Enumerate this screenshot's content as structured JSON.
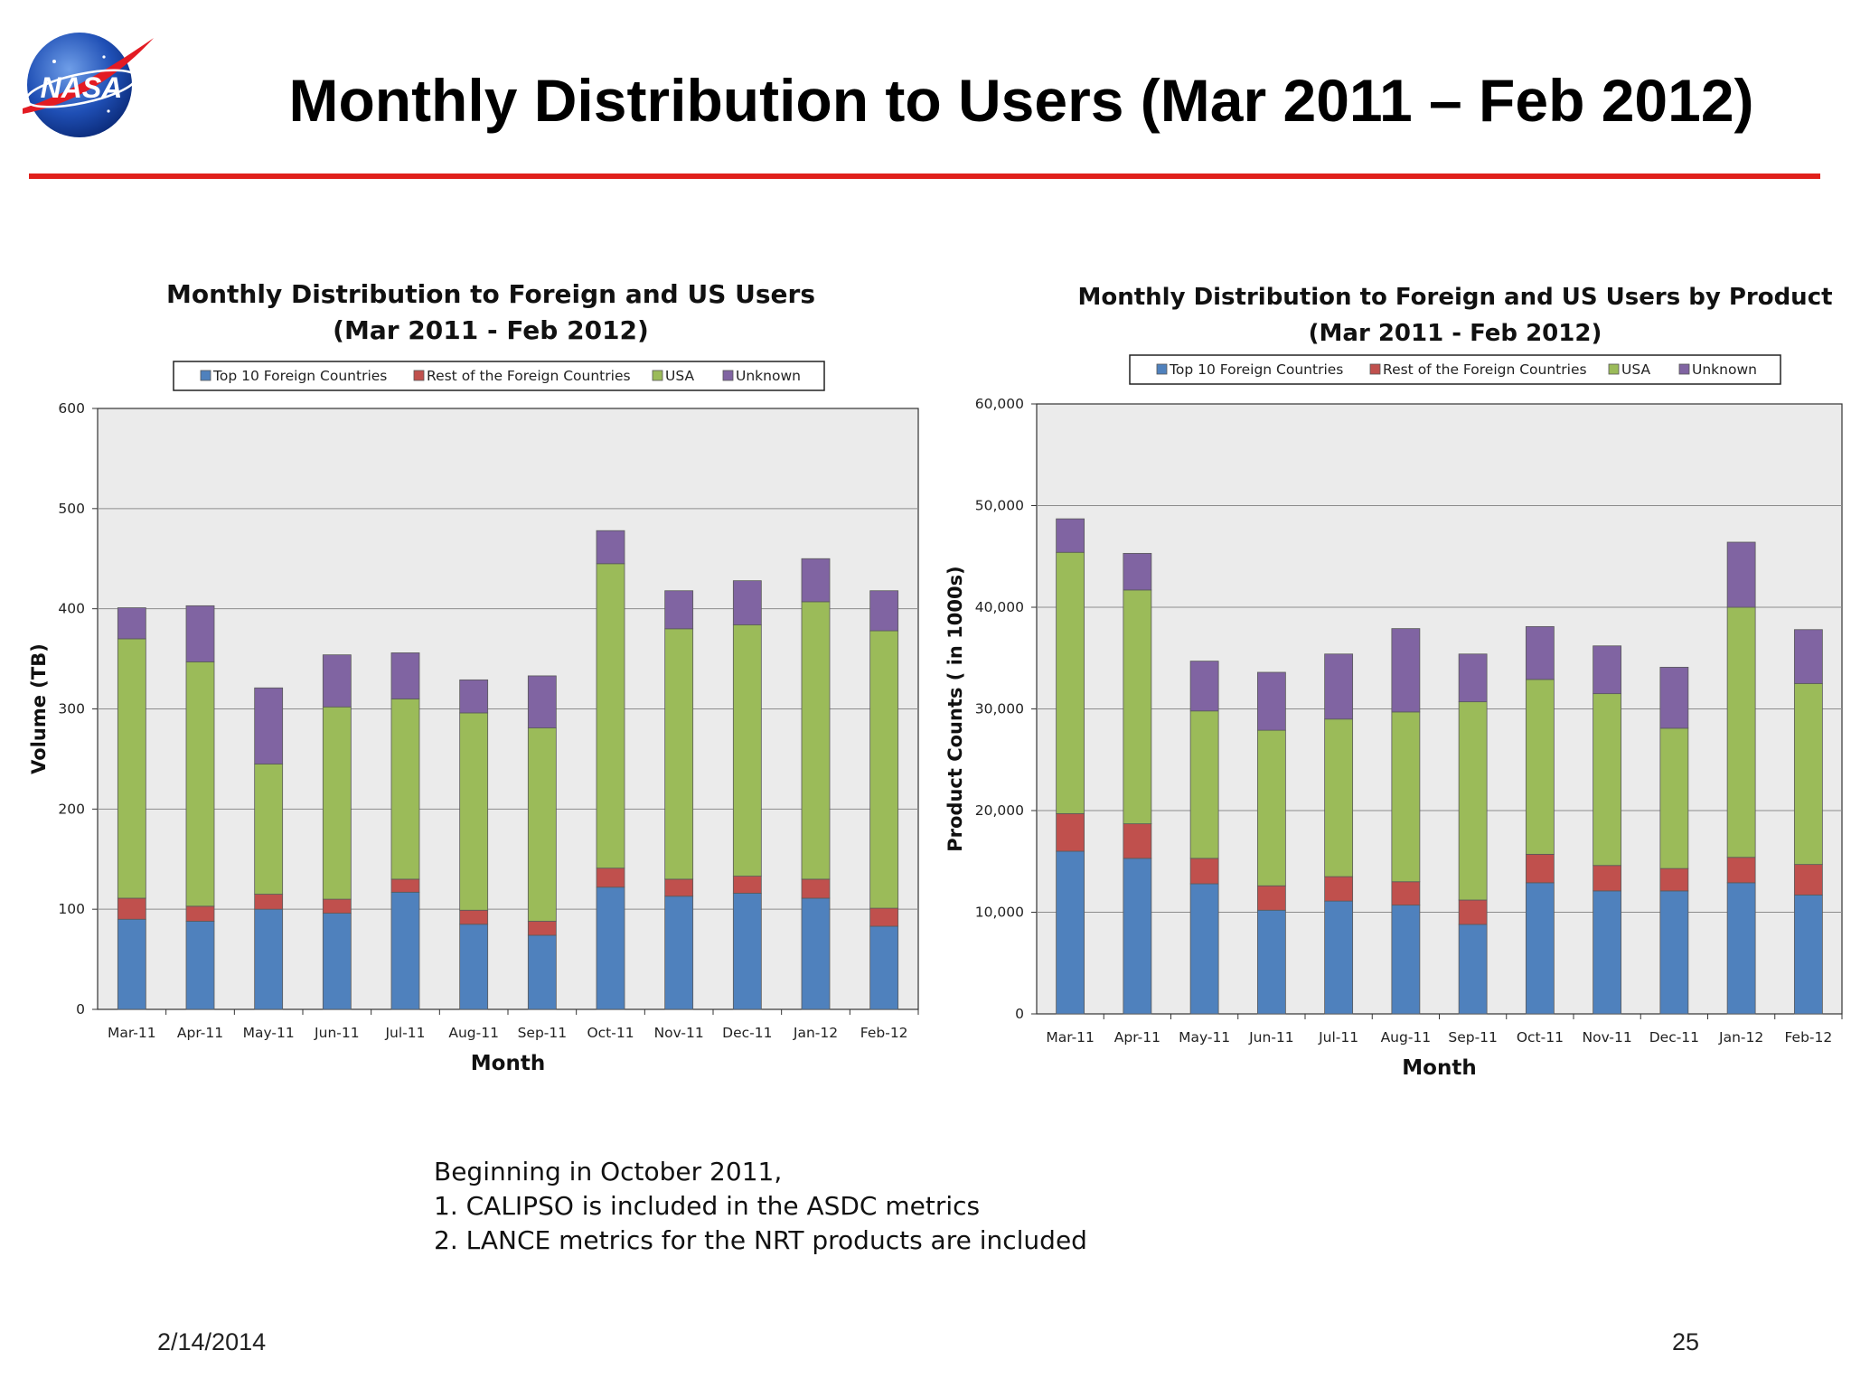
{
  "slide": {
    "title": "Monthly Distribution to Users (Mar 2011 – Feb 2012)",
    "logo_text": "NASA",
    "rule_color": "#e0201b",
    "note_lines": [
      "Beginning in October 2011,",
      "1. CALIPSO is included in the ASDC metrics",
      "2. LANCE metrics for the NRT products are included"
    ],
    "footer_date": "2/14/2014",
    "page_number": "25"
  },
  "chart_data": [
    {
      "type": "bar",
      "stacked": true,
      "title": [
        "Monthly Distribution to Foreign and US Users",
        "(Mar 2011 - Feb 2012)"
      ],
      "xlabel": "Month",
      "ylabel": "Volume (TB)",
      "ylim": [
        0,
        600
      ],
      "yticks": [
        0,
        100,
        200,
        300,
        400,
        500,
        600
      ],
      "ytick_labels": [
        "0",
        "100",
        "200",
        "300",
        "400",
        "500",
        "600"
      ],
      "grid": true,
      "legend_position": "top",
      "categories": [
        "Mar-11",
        "Apr-11",
        "May-11",
        "Jun-11",
        "Jul-11",
        "Aug-11",
        "Sep-11",
        "Oct-11",
        "Nov-11",
        "Dec-11",
        "Jan-12",
        "Feb-12"
      ],
      "series": [
        {
          "name": "Top 10 Foreign Countries",
          "color": "#4f81bd",
          "values": [
            90,
            88,
            100,
            96,
            117,
            85,
            74,
            122,
            113,
            116,
            111,
            83
          ]
        },
        {
          "name": "Rest of the Foreign Countries",
          "color": "#c0504d",
          "values": [
            21,
            15,
            15,
            14,
            13,
            14,
            14,
            19,
            17,
            17,
            19,
            18
          ]
        },
        {
          "name": "USA",
          "color": "#9bbb59",
          "values": [
            259,
            244,
            130,
            192,
            180,
            197,
            193,
            304,
            250,
            251,
            277,
            277
          ]
        },
        {
          "name": "Unknown",
          "color": "#8064a2",
          "values": [
            31,
            56,
            76,
            52,
            46,
            33,
            52,
            33,
            38,
            44,
            43,
            40
          ]
        }
      ]
    },
    {
      "type": "bar",
      "stacked": true,
      "title": [
        "Monthly Distribution  to Foreign and US Users by Product",
        "(Mar 2011 - Feb 2012)"
      ],
      "xlabel": "Month",
      "ylabel": "Product Counts ( in 1000s)",
      "ylim": [
        0,
        60000
      ],
      "yticks": [
        0,
        10000,
        20000,
        30000,
        40000,
        50000,
        60000
      ],
      "ytick_labels": [
        "0",
        "10,000",
        "20,000",
        "30,000",
        "40,000",
        "50,000",
        "60,000"
      ],
      "grid": true,
      "legend_position": "top",
      "categories": [
        "Mar-11",
        "Apr-11",
        "May-11",
        "Jun-11",
        "Jul-11",
        "Aug-11",
        "Sep-11",
        "Oct-11",
        "Nov-11",
        "Dec-11",
        "Jan-12",
        "Feb-12"
      ],
      "series": [
        {
          "name": "Top 10 Foreign Countries",
          "color": "#4f81bd",
          "values": [
            16000,
            15300,
            12800,
            10200,
            11100,
            10700,
            8800,
            12900,
            12100,
            12100,
            12900,
            11700
          ]
        },
        {
          "name": "Rest of the Foreign Countries",
          "color": "#c0504d",
          "values": [
            3700,
            3400,
            2500,
            2400,
            2400,
            2300,
            2400,
            2800,
            2500,
            2200,
            2500,
            3000
          ]
        },
        {
          "name": "USA",
          "color": "#9bbb59",
          "values": [
            25700,
            23000,
            14500,
            15300,
            15500,
            16700,
            19500,
            17200,
            16900,
            13800,
            24600,
            17800
          ]
        },
        {
          "name": "Unknown",
          "color": "#8064a2",
          "values": [
            3300,
            3600,
            4900,
            5700,
            6400,
            8200,
            4700,
            5200,
            4700,
            6000,
            6400,
            5300
          ]
        }
      ]
    }
  ]
}
